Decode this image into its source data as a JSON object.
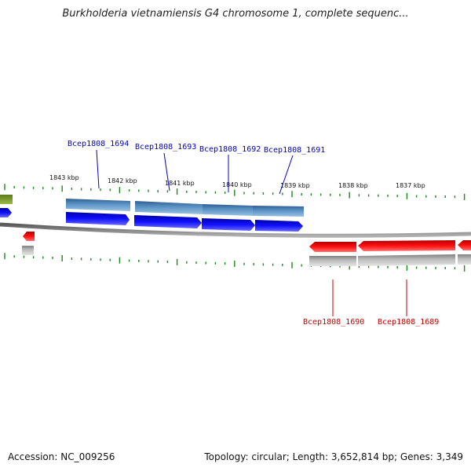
{
  "title": "Burkholderia vietnamiensis G4 chromosome 1, complete sequenc...",
  "footer": {
    "accession": "Accession: NC_009256",
    "summary": "Topology: circular; Length: 3,652,814 bp; Genes: 3,349"
  },
  "ticks": [
    "1843 kbp",
    "1842 kbp",
    "1841 kbp",
    "1840 kbp",
    "1839 kbp",
    "1838 kbp",
    "1837 kbp"
  ],
  "genes_forward": [
    {
      "label": "Bcep1808_1694"
    },
    {
      "label": "Bcep1808_1693"
    },
    {
      "label": "Bcep1808_1692"
    },
    {
      "label": "Bcep1808_1691"
    }
  ],
  "genes_reverse": [
    {
      "label": "Bcep1808_1690"
    },
    {
      "label": "Bcep1808_1689"
    }
  ],
  "colors": {
    "forward_gene": "#0a0ff0",
    "forward_cds": "#4f86b8",
    "reverse_gene": "#ee0000",
    "reverse_cds": "#a9a9a9",
    "backbone": "#808080",
    "tick": "#1a8a1a",
    "other_feature": "#7a9a2a"
  }
}
